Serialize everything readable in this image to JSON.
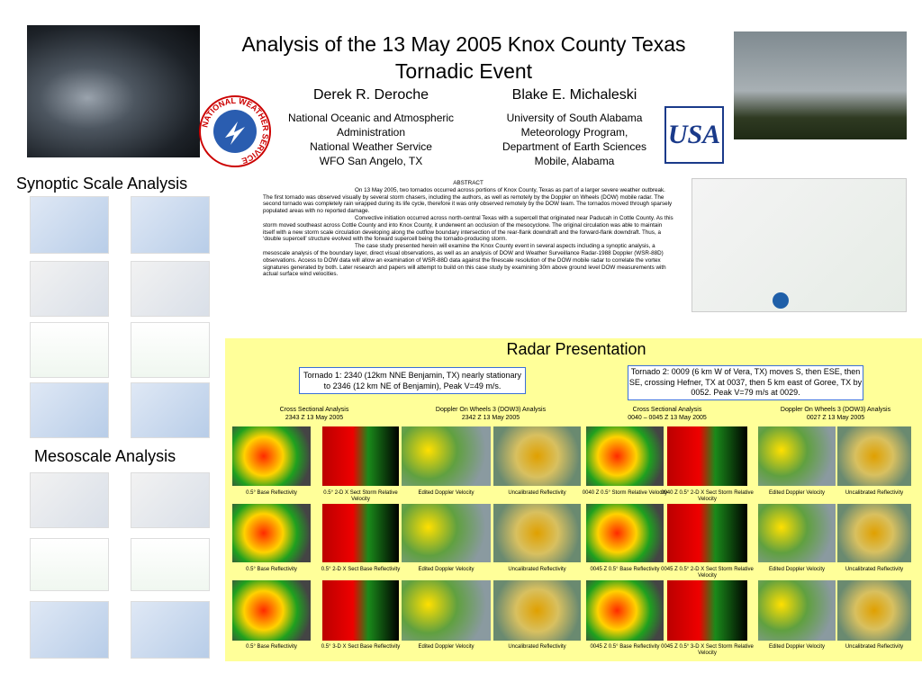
{
  "header": {
    "title": [
      "Analysis of the 13 May 2005 Knox County Texas",
      "Tornadic Event"
    ],
    "authors": [
      {
        "name": "Derek R. Deroche",
        "affiliation": [
          "National Oceanic and Atmospheric",
          "Administration",
          "National Weather Service",
          "WFO San Angelo, TX"
        ]
      },
      {
        "name": "Blake E. Michaleski",
        "affiliation": [
          "University of South Alabama",
          "Meteorology Program,",
          "Department of Earth Sciences",
          "Mobile, Alabama"
        ]
      }
    ],
    "logos": {
      "nws": "NATIONAL WEATHER SERVICE",
      "usa": "USA"
    }
  },
  "sections": {
    "synoptic": "Synoptic Scale Analysis",
    "mesoscale": "Mesoscale Analysis",
    "radar": "Radar Presentation"
  },
  "abstract": {
    "heading": "ABSTRACT",
    "paragraphs": [
      "On 13 May 2005, two  tornados occurred across portions of Knox County, Texas as part of a larger severe weather outbreak. The first tornado was observed visually by several storm chasers, including the authors, as well as remotely by the Doppler on Wheels (DOW) mobile radar. The second tornado was completely rain wrapped during its life cycle, therefore it was only observed remotely by the DOW  team. The tornados moved through sparsely populated areas with no reported damage.",
      "Convective initiation occurred across north-central Texas with a supercell that originated near Paducah in Cottle County. As this storm moved southeast across Cottle County and into Knox County, it underwent an occlusion of the mesocyclone. The original circulation was able to maintain itself with a new storm scale circulation developing along the outflow boundary intersection of the rear-flank downdraft and the forward-flank downdraft. Thus, a ‘double supercell’ structure evolved with the forward supercell being the tornado-producing storm.",
      "The case study presented herein will examine the Knox County event in several aspects including a synoptic analysis, a mesoscale analysis of the boundary layer, direct visual observations, as well as an analysis of DOW and Weather Surveillance Radar-1988 Doppler (WSR-88D) observations. Access to DOW data will allow an examination of WSR-88D data against the finescale resolution of the DOW mobile radar to correlate the vortex signatures generated by both. Later research and papers will attempt to build on this case study by examining 30m above ground level DOW measurements with actual surface wind velocities."
    ]
  },
  "radar": {
    "notes": [
      "Tornado 1:  2340 (12km NNE Benjamin, TX) nearly stationary to 2346 (12 km NE of Benjamin), Peak V=49 m/s.",
      "Tornado 2: 0009 (6 km W of Vera, TX) moves S, then ESE, then SE, crossing Hefner, TX at 0037, then 5 km east of Goree, TX by 0052. Peak V=79 m/s at 0029."
    ],
    "columns": [
      [
        "Cross Sectional Analysis",
        "2343 Z 13 May 2005"
      ],
      [
        "Doppler On Wheels 3 (DOW3) Analysis",
        "2342 Z 13 May 2005"
      ],
      [
        "Cross Sectional Analysis",
        "0040 – 0045 Z 13 May 2005"
      ],
      [
        "Doppler On Wheels 3 (DOW3) Analysis",
        "0027 Z 13 May 2005"
      ]
    ],
    "captions": [
      [
        "0.5° Base Reflectivity",
        "0.5° 2-D X Sect Storm Relative Velocity",
        "Edited Doppler Velocity",
        "Uncalibrated Reflectivity",
        "0040 Z 0.5° Storm Relative Velocity",
        "0040 Z 0.5° 2-D X Sect Storm Relative Velocity",
        "Edited Doppler Velocity",
        "Uncalibrated Reflectivity"
      ],
      [
        "0.5° Base Reflectivity",
        "0.5° 2-D X Sect Base Reflectivity",
        "Edited Doppler Velocity",
        "Uncalibrated Reflectivity",
        "0045 Z 0.5° Base Reflectivity",
        "0045 Z 0.5° 2-D X Sect Storm Relative Velocity",
        "Edited Doppler Velocity",
        "Uncalibrated Reflectivity"
      ],
      [
        "0.5° Base Reflectivity",
        "0.5° 3-D X Sect Base Reflectivity",
        "Edited Doppler Velocity",
        "Uncalibrated Reflectivity",
        "0045 Z 0.5° Base Reflectivity",
        "0045 Z 0.5° 3-D X Sect Storm Relative Velocity",
        "Edited Doppler Velocity",
        "Uncalibrated Reflectivity"
      ]
    ]
  }
}
